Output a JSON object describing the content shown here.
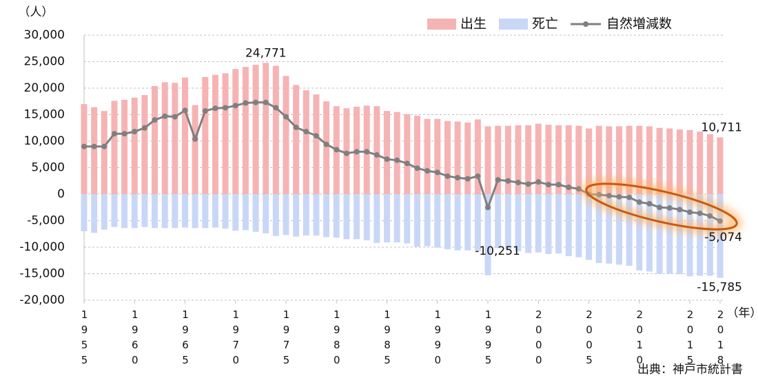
{
  "chart_data": {
    "type": "bar-line",
    "y_unit": "（人）",
    "x_unit": "（年）",
    "source": "出典：神戸市統計書",
    "legend": "top-right",
    "grid": true,
    "x": [
      1955,
      1956,
      1957,
      1958,
      1959,
      1960,
      1961,
      1962,
      1963,
      1964,
      1965,
      1966,
      1967,
      1968,
      1969,
      1970,
      1971,
      1972,
      1973,
      1974,
      1975,
      1976,
      1977,
      1978,
      1979,
      1980,
      1981,
      1982,
      1983,
      1984,
      1985,
      1986,
      1987,
      1988,
      1989,
      1990,
      1991,
      1992,
      1993,
      1994,
      1995,
      1996,
      1997,
      1998,
      1999,
      2000,
      2001,
      2002,
      2003,
      2004,
      2005,
      2006,
      2007,
      2008,
      2009,
      2010,
      2011,
      2012,
      2013,
      2014,
      2015,
      2016,
      2017,
      2018
    ],
    "xlim": [
      1955,
      2018
    ],
    "xticks": [
      1955,
      1960,
      1965,
      1970,
      1975,
      1980,
      1985,
      1990,
      1995,
      2000,
      2005,
      2010,
      2015,
      2018
    ],
    "ylim": [
      -20000,
      30000
    ],
    "yticks": [
      {
        "value": -20000,
        "label": "-20,000"
      },
      {
        "value": -15000,
        "label": "-15,000"
      },
      {
        "value": -10000,
        "label": "-10,000"
      },
      {
        "value": -5000,
        "label": "-5,000"
      },
      0,
      {
        "value": 5000,
        "label": "5,000"
      },
      {
        "value": 10000,
        "label": "10,000"
      },
      {
        "value": 15000,
        "label": "15,000"
      },
      {
        "value": 20000,
        "label": "20,000"
      },
      {
        "value": 25000,
        "label": "25,000"
      },
      {
        "value": 30000,
        "label": "30,000"
      }
    ],
    "series": [
      {
        "name": "出生",
        "kind": "bar",
        "color": "#f6b3b3",
        "values": [
          17000,
          16400,
          15700,
          17600,
          17800,
          18200,
          18700,
          20400,
          21100,
          21000,
          22000,
          16800,
          22100,
          22500,
          22800,
          23600,
          24000,
          24400,
          24771,
          24200,
          22300,
          20600,
          19600,
          18800,
          17500,
          16600,
          16200,
          16500,
          16700,
          16600,
          15700,
          15500,
          15100,
          14800,
          14200,
          14200,
          13800,
          13700,
          13500,
          14100,
          12800,
          12900,
          12900,
          13000,
          13000,
          13300,
          13100,
          13000,
          13000,
          12900,
          12400,
          12900,
          12800,
          12800,
          12900,
          12900,
          12800,
          12500,
          12400,
          12200,
          12100,
          11800,
          11300,
          10711
        ],
        "value_labels": [
          null,
          null,
          null,
          null,
          null,
          null,
          null,
          null,
          null,
          null,
          null,
          null,
          null,
          null,
          null,
          null,
          null,
          null,
          "24,771",
          null,
          null,
          null,
          null,
          null,
          null,
          null,
          null,
          null,
          null,
          null,
          null,
          null,
          null,
          null,
          null,
          null,
          null,
          null,
          null,
          null,
          null,
          null,
          null,
          null,
          null,
          null,
          null,
          null,
          null,
          null,
          null,
          null,
          null,
          null,
          null,
          null,
          null,
          null,
          null,
          null,
          null,
          null,
          null,
          "10,711"
        ]
      },
      {
        "name": "死亡",
        "kind": "bar",
        "color": "#c9d7f7",
        "values": [
          -7000,
          -7300,
          -6700,
          -6200,
          -6400,
          -6400,
          -6200,
          -6400,
          -6400,
          -6400,
          -6300,
          -6400,
          -6400,
          -6300,
          -6500,
          -6900,
          -6800,
          -7100,
          -7400,
          -7900,
          -7700,
          -8000,
          -7800,
          -7800,
          -8100,
          -8200,
          -8500,
          -8500,
          -8700,
          -9200,
          -9100,
          -9100,
          -9300,
          -9900,
          -9800,
          -10100,
          -10400,
          -10600,
          -10600,
          -10700,
          -15300,
          -10200,
          -10400,
          -10800,
          -11100,
          -11000,
          -11300,
          -11200,
          -11700,
          -11900,
          -12400,
          -13000,
          -13100,
          -13300,
          -13500,
          -14400,
          -14600,
          -15000,
          -15000,
          -15100,
          -15500,
          -15400,
          -15400,
          -15785
        ],
        "value_labels": [
          null,
          null,
          null,
          null,
          null,
          null,
          null,
          null,
          null,
          null,
          null,
          null,
          null,
          null,
          null,
          null,
          null,
          null,
          null,
          null,
          null,
          null,
          null,
          null,
          null,
          null,
          null,
          null,
          null,
          null,
          null,
          null,
          null,
          null,
          null,
          null,
          null,
          null,
          null,
          null,
          null,
          null,
          null,
          null,
          null,
          null,
          null,
          null,
          null,
          null,
          null,
          null,
          null,
          null,
          null,
          null,
          null,
          null,
          null,
          null,
          null,
          null,
          null,
          "-15,785"
        ]
      },
      {
        "name": "自然増減数",
        "kind": "line",
        "color": "#7f7f7f",
        "label_color": "#c0504d",
        "values": [
          9000,
          9000,
          9000,
          11400,
          11400,
          11800,
          12500,
          14000,
          14700,
          14600,
          15800,
          10400,
          15700,
          16200,
          16300,
          16700,
          17200,
          17300,
          17300,
          16300,
          14600,
          12600,
          11800,
          11000,
          9400,
          8400,
          7700,
          8000,
          8000,
          7400,
          6600,
          6400,
          5800,
          4900,
          4400,
          4100,
          3400,
          3100,
          2900,
          3400,
          -2500,
          2700,
          2500,
          2200,
          1900,
          2300,
          1800,
          1800,
          1300,
          1000,
          0,
          -100,
          -300,
          -500,
          -600,
          -1500,
          -1800,
          -2500,
          -2600,
          -2900,
          -3400,
          -3600,
          -4100,
          -5074
        ],
        "value_labels": [
          null,
          null,
          null,
          null,
          null,
          null,
          null,
          null,
          null,
          null,
          null,
          null,
          null,
          null,
          null,
          null,
          null,
          null,
          null,
          null,
          null,
          null,
          null,
          null,
          null,
          null,
          null,
          null,
          null,
          null,
          null,
          null,
          null,
          null,
          null,
          null,
          null,
          null,
          null,
          null,
          null,
          null,
          null,
          null,
          null,
          null,
          null,
          null,
          null,
          null,
          null,
          null,
          null,
          null,
          null,
          null,
          null,
          null,
          null,
          null,
          null,
          null,
          null,
          "-5,074"
        ]
      }
    ],
    "annotations": [
      {
        "label": "-10,251",
        "x": 1995,
        "value": -10251
      }
    ]
  }
}
